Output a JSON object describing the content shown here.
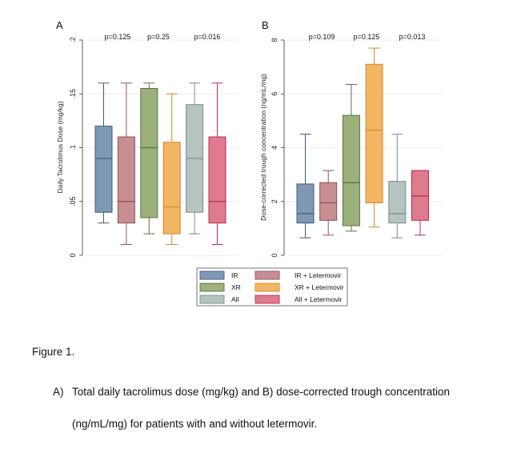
{
  "legend": [
    {
      "key": "IR",
      "label": "IR",
      "color": "#7f99b5",
      "edge": "#3f5a7a"
    },
    {
      "key": "IR_L",
      "label": "IR + Letermovir",
      "color": "#c98e94",
      "edge": "#8e4e56"
    },
    {
      "key": "XR",
      "label": "XR",
      "color": "#9bb07b",
      "edge": "#5a7040"
    },
    {
      "key": "XR_L",
      "label": "XR + Letermovir",
      "color": "#f2b564",
      "edge": "#d08a25"
    },
    {
      "key": "All",
      "label": "All",
      "color": "#b5c4c0",
      "edge": "#7a8c88"
    },
    {
      "key": "All_L",
      "label": "All + Letermovir",
      "color": "#e07a8e",
      "edge": "#b03050"
    }
  ],
  "chart_data": [
    {
      "type": "box",
      "panel_label": "A",
      "ylabel": "Daily Tacrolimus Dose (mg/kg)",
      "ylim": [
        0,
        0.2
      ],
      "yticks": [
        0,
        0.05,
        0.1,
        0.15,
        0.2
      ],
      "yticklabels": [
        "0",
        ".05",
        ".1",
        ".15",
        ".2"
      ],
      "pvalues": [
        "p=0.125",
        "p=0.25",
        "p=0.016"
      ],
      "series": [
        {
          "name": "IR",
          "min": 0.03,
          "q1": 0.04,
          "median": 0.09,
          "q3": 0.12,
          "max": 0.16
        },
        {
          "name": "IR + Letermovir",
          "min": 0.01,
          "q1": 0.03,
          "median": 0.05,
          "q3": 0.11,
          "max": 0.16
        },
        {
          "name": "XR",
          "min": 0.02,
          "q1": 0.035,
          "median": 0.1,
          "q3": 0.155,
          "max": 0.16
        },
        {
          "name": "XR + Letermovir",
          "min": 0.01,
          "q1": 0.02,
          "median": 0.045,
          "q3": 0.105,
          "max": 0.15
        },
        {
          "name": "All",
          "min": 0.02,
          "q1": 0.04,
          "median": 0.09,
          "q3": 0.14,
          "max": 0.16
        },
        {
          "name": "All + Letermovir",
          "min": 0.01,
          "q1": 0.03,
          "median": 0.05,
          "q3": 0.11,
          "max": 0.16
        }
      ]
    },
    {
      "type": "box",
      "panel_label": "B",
      "ylabel": "Dose-corrected trough concentration (ng/mL/mg)",
      "ylim": [
        0,
        8
      ],
      "yticks": [
        0,
        2,
        4,
        6,
        8
      ],
      "yticklabels": [
        "0",
        "2",
        "4",
        "6",
        "8"
      ],
      "pvalues": [
        "p=0.109",
        "p=0.125",
        "p=0.013"
      ],
      "series": [
        {
          "name": "IR",
          "min": 0.65,
          "q1": 1.2,
          "median": 1.55,
          "q3": 2.65,
          "max": 4.5
        },
        {
          "name": "IR + Letermovir",
          "min": 0.75,
          "q1": 1.3,
          "median": 1.95,
          "q3": 2.7,
          "max": 3.15
        },
        {
          "name": "XR",
          "min": 0.9,
          "q1": 1.1,
          "median": 2.7,
          "q3": 5.2,
          "max": 6.35
        },
        {
          "name": "XR + Letermovir",
          "min": 1.05,
          "q1": 1.95,
          "median": 4.65,
          "q3": 7.1,
          "max": 7.7
        },
        {
          "name": "All",
          "min": 0.65,
          "q1": 1.2,
          "median": 1.55,
          "q3": 2.75,
          "max": 4.5
        },
        {
          "name": "All + Letermovir",
          "min": 0.75,
          "q1": 1.3,
          "median": 2.2,
          "q3": 3.15,
          "max": 3.15
        }
      ]
    }
  ],
  "caption": {
    "title": "Figure 1.",
    "label": "A)",
    "line1": "Total daily tacrolimus dose (mg/kg) and B) dose-corrected trough concentration",
    "line2": "(ng/mL/mg) for patients with and without letermovir."
  }
}
